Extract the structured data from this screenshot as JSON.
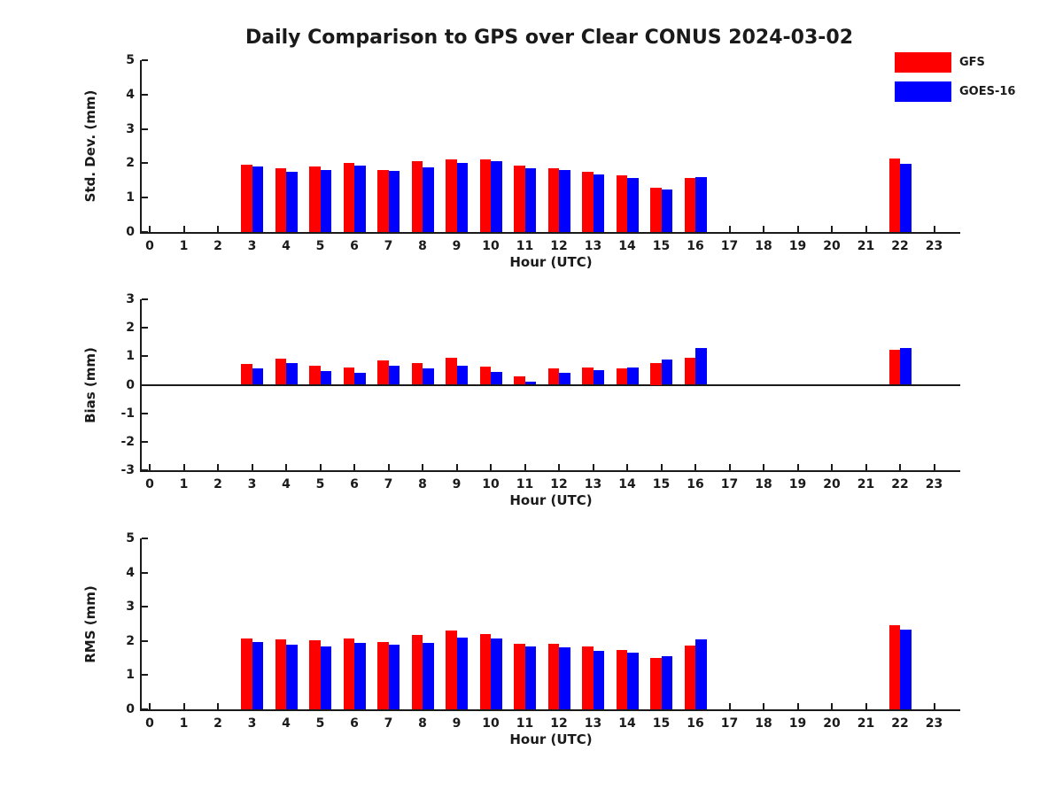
{
  "title": "Daily Comparison to GPS over Clear CONUS 2024-03-02",
  "legend": [
    {
      "label": "GFS",
      "color": "#ff0000"
    },
    {
      "label": "GOES-16",
      "color": "#0000ff"
    }
  ],
  "colors": {
    "gfs": "#ff0000",
    "goes16": "#0000ff",
    "axis": "#1a1a1a",
    "background": "#ffffff"
  },
  "chart_data": [
    {
      "type": "bar",
      "panel": "std-dev",
      "ylabel": "Std. Dev. (mm)",
      "xlabel": "Hour (UTC)",
      "ylim": [
        0,
        5
      ],
      "yticks": [
        0,
        1,
        2,
        3,
        4,
        5
      ],
      "x": [
        0,
        1,
        2,
        3,
        4,
        5,
        6,
        7,
        8,
        9,
        10,
        11,
        12,
        13,
        14,
        15,
        16,
        17,
        18,
        19,
        20,
        21,
        22,
        23
      ],
      "legend_position": "upper-right-outside",
      "grid": false,
      "series": [
        {
          "name": "GFS",
          "color": "#ff0000",
          "values": [
            null,
            null,
            null,
            1.97,
            1.85,
            1.92,
            2.0,
            1.8,
            2.07,
            2.12,
            2.12,
            1.93,
            1.85,
            1.75,
            1.64,
            1.3,
            1.58,
            null,
            null,
            null,
            null,
            null,
            2.15,
            null
          ]
        },
        {
          "name": "GOES-16",
          "color": "#0000ff",
          "values": [
            null,
            null,
            null,
            1.9,
            1.75,
            1.8,
            1.93,
            1.77,
            1.87,
            2.0,
            2.05,
            1.85,
            1.8,
            1.68,
            1.57,
            1.25,
            1.6,
            null,
            null,
            null,
            null,
            null,
            1.98,
            null
          ]
        }
      ]
    },
    {
      "type": "bar",
      "panel": "bias",
      "ylabel": "Bias (mm)",
      "xlabel": "Hour (UTC)",
      "ylim": [
        -3,
        3
      ],
      "yticks": [
        -3,
        -2,
        -1,
        0,
        1,
        2,
        3
      ],
      "zero_line": true,
      "x": [
        0,
        1,
        2,
        3,
        4,
        5,
        6,
        7,
        8,
        9,
        10,
        11,
        12,
        13,
        14,
        15,
        16,
        17,
        18,
        19,
        20,
        21,
        22,
        23
      ],
      "grid": false,
      "series": [
        {
          "name": "GFS",
          "color": "#ff0000",
          "values": [
            null,
            null,
            null,
            0.73,
            0.92,
            0.67,
            0.6,
            0.85,
            0.76,
            0.94,
            0.64,
            0.3,
            0.59,
            0.62,
            0.58,
            0.75,
            0.95,
            null,
            null,
            null,
            null,
            null,
            1.23,
            null
          ]
        },
        {
          "name": "GOES-16",
          "color": "#0000ff",
          "values": [
            null,
            null,
            null,
            0.57,
            0.76,
            0.48,
            0.43,
            0.66,
            0.58,
            0.66,
            0.44,
            0.1,
            0.42,
            0.5,
            0.62,
            0.9,
            1.28,
            null,
            null,
            null,
            null,
            null,
            1.28,
            null
          ]
        }
      ]
    },
    {
      "type": "bar",
      "panel": "rms",
      "ylabel": "RMS (mm)",
      "xlabel": "Hour (UTC)",
      "ylim": [
        0,
        5
      ],
      "yticks": [
        0,
        1,
        2,
        3,
        4,
        5
      ],
      "x": [
        0,
        1,
        2,
        3,
        4,
        5,
        6,
        7,
        8,
        9,
        10,
        11,
        12,
        13,
        14,
        15,
        16,
        17,
        18,
        19,
        20,
        21,
        22,
        23
      ],
      "grid": false,
      "series": [
        {
          "name": "GFS",
          "color": "#ff0000",
          "values": [
            null,
            null,
            null,
            2.08,
            2.05,
            2.03,
            2.08,
            1.98,
            2.18,
            2.3,
            2.2,
            1.93,
            1.92,
            1.85,
            1.74,
            1.5,
            1.86,
            null,
            null,
            null,
            null,
            null,
            2.47,
            null
          ]
        },
        {
          "name": "GOES-16",
          "color": "#0000ff",
          "values": [
            null,
            null,
            null,
            1.97,
            1.9,
            1.85,
            1.95,
            1.88,
            1.95,
            2.1,
            2.08,
            1.85,
            1.82,
            1.72,
            1.67,
            1.55,
            2.04,
            null,
            null,
            null,
            null,
            null,
            2.32,
            null
          ]
        }
      ]
    }
  ]
}
